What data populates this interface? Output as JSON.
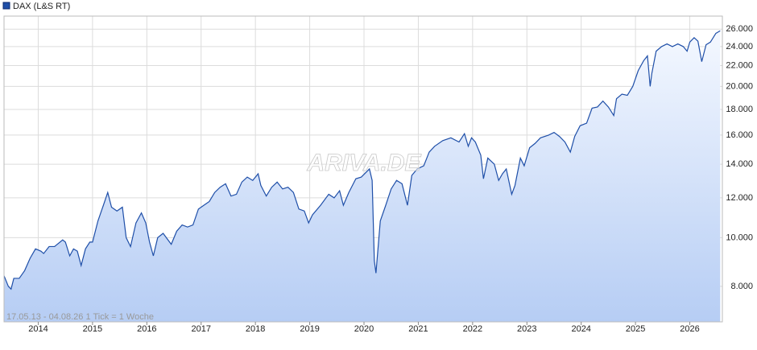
{
  "chart_data": {
    "type": "line",
    "title": "DAX (L&S RT)",
    "note": "17.05.13 - 04.08.26   1 Tick = 1 Woche",
    "watermark": "ARIVA.DE",
    "log_scale": true,
    "grid": true,
    "area": true,
    "x": [
      2013.37,
      2013.45,
      2013.5,
      2013.55,
      2013.65,
      2013.75,
      2013.85,
      2013.95,
      2014.05,
      2014.1,
      2014.2,
      2014.3,
      2014.45,
      2014.5,
      2014.58,
      2014.65,
      2014.72,
      2014.79,
      2014.87,
      2014.95,
      2015.0,
      2015.1,
      2015.2,
      2015.28,
      2015.35,
      2015.45,
      2015.55,
      2015.62,
      2015.7,
      2015.8,
      2015.9,
      2015.98,
      2016.05,
      2016.12,
      2016.2,
      2016.3,
      2016.45,
      2016.55,
      2016.65,
      2016.75,
      2016.85,
      2016.95,
      2017.05,
      2017.15,
      2017.25,
      2017.35,
      2017.45,
      2017.55,
      2017.65,
      2017.75,
      2017.85,
      2017.95,
      2018.05,
      2018.1,
      2018.2,
      2018.3,
      2018.4,
      2018.5,
      2018.6,
      2018.7,
      2018.8,
      2018.9,
      2018.98,
      2019.05,
      2019.2,
      2019.35,
      2019.45,
      2019.55,
      2019.62,
      2019.72,
      2019.85,
      2019.95,
      2020.1,
      2020.15,
      2020.19,
      2020.22,
      2020.3,
      2020.4,
      2020.5,
      2020.6,
      2020.7,
      2020.8,
      2020.88,
      2020.98,
      2021.1,
      2021.2,
      2021.3,
      2021.45,
      2021.6,
      2021.75,
      2021.85,
      2021.92,
      2021.98,
      2022.05,
      2022.15,
      2022.2,
      2022.28,
      2022.4,
      2022.48,
      2022.55,
      2022.62,
      2022.72,
      2022.78,
      2022.88,
      2022.95,
      2023.05,
      2023.15,
      2023.25,
      2023.4,
      2023.5,
      2023.6,
      2023.7,
      2023.8,
      2023.88,
      2023.98,
      2024.1,
      2024.2,
      2024.3,
      2024.4,
      2024.5,
      2024.6,
      2024.65,
      2024.75,
      2024.85,
      2024.95,
      2025.05,
      2025.15,
      2025.22,
      2025.27,
      2025.3,
      2025.38,
      2025.48,
      2025.58,
      2025.68,
      2025.78,
      2025.88,
      2025.95,
      2026.0,
      2026.08,
      2026.15,
      2026.22,
      2026.3,
      2026.38,
      2026.48,
      2026.56
    ],
    "series": [
      {
        "name": "DAX (L&S RT)",
        "color": "#1f4fa8",
        "values": [
          8400,
          8000,
          7900,
          8300,
          8300,
          8600,
          9100,
          9500,
          9400,
          9300,
          9600,
          9600,
          9900,
          9800,
          9200,
          9500,
          9400,
          8800,
          9500,
          9800,
          9800,
          10800,
          11600,
          12300,
          11500,
          11300,
          11500,
          10000,
          9600,
          10700,
          11200,
          10700,
          9800,
          9200,
          10000,
          10200,
          9700,
          10300,
          10600,
          10500,
          10600,
          11400,
          11600,
          11800,
          12300,
          12600,
          12800,
          12100,
          12200,
          12900,
          13200,
          13000,
          13400,
          12700,
          12100,
          12600,
          12900,
          12500,
          12600,
          12300,
          11400,
          11300,
          10700,
          11100,
          11600,
          12200,
          12000,
          12400,
          11600,
          12300,
          13100,
          13200,
          13700,
          13000,
          9000,
          8500,
          10800,
          11600,
          12500,
          13000,
          12800,
          11600,
          13300,
          13700,
          13900,
          14800,
          15200,
          15600,
          15800,
          15500,
          16100,
          15200,
          15800,
          15500,
          14600,
          13100,
          14400,
          14000,
          13000,
          13400,
          13700,
          12200,
          12700,
          14400,
          13900,
          15100,
          15400,
          15800,
          16000,
          16200,
          15900,
          15500,
          14800,
          15900,
          16700,
          16900,
          18100,
          18200,
          18700,
          18200,
          17500,
          18900,
          19300,
          19200,
          20000,
          21500,
          22500,
          23000,
          20000,
          21200,
          23500,
          24000,
          24300,
          24000,
          24300,
          24000,
          23500,
          24500,
          25000,
          24600,
          22400,
          24200,
          24500,
          25500,
          25800
        ]
      }
    ],
    "xlim": [
      2013.37,
      2026.6
    ],
    "xticks": [
      2014,
      2015,
      2016,
      2017,
      2018,
      2019,
      2020,
      2021,
      2022,
      2023,
      2024,
      2025,
      2026
    ],
    "ylim": [
      6800,
      27600
    ],
    "yticks": [
      {
        "value": 8000,
        "label": "8.000"
      },
      {
        "value": 10000,
        "label": "10.000"
      },
      {
        "value": 12000,
        "label": "12.000"
      },
      {
        "value": 14000,
        "label": "14.000"
      },
      {
        "value": 16000,
        "label": "16.000"
      },
      {
        "value": 18000,
        "label": "18.000"
      },
      {
        "value": 20000,
        "label": "20.000"
      },
      {
        "value": 22000,
        "label": "22.000"
      },
      {
        "value": 24000,
        "label": "24.000"
      },
      {
        "value": 26000,
        "label": "26.000"
      }
    ]
  }
}
